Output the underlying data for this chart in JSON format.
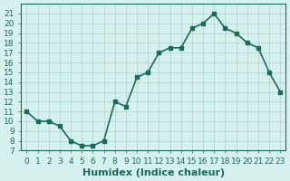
{
  "xlabel": "Humidex (Indice chaleur)",
  "x_values": [
    0,
    1,
    2,
    3,
    4,
    5,
    6,
    7,
    8,
    9,
    10,
    11,
    12,
    13,
    14,
    15,
    16,
    17,
    18,
    19,
    20,
    21,
    22,
    23
  ],
  "y_values": [
    11,
    10,
    10,
    9.5,
    8,
    7.5,
    7.5,
    8,
    12,
    11.5,
    14.5,
    15,
    17,
    17.5,
    17.5,
    19.5,
    20,
    21,
    19.5,
    19,
    18,
    17.5,
    15,
    13
  ],
  "xlim": [
    -0.5,
    23.5
  ],
  "ylim": [
    7,
    22
  ],
  "yticks": [
    7,
    8,
    9,
    10,
    11,
    12,
    13,
    14,
    15,
    16,
    17,
    18,
    19,
    20,
    21
  ],
  "xticks": [
    0,
    1,
    2,
    3,
    4,
    5,
    6,
    7,
    8,
    9,
    10,
    11,
    12,
    13,
    14,
    15,
    16,
    17,
    18,
    19,
    20,
    21,
    22,
    23
  ],
  "line_color": "#1a6b5e",
  "marker": "s",
  "marker_size": 3,
  "bg_color": "#d6f0ee",
  "grid_color": "#b0d8d4",
  "axis_color": "#1a6b5e",
  "tick_label_fontsize": 6.5,
  "xlabel_fontsize": 8
}
